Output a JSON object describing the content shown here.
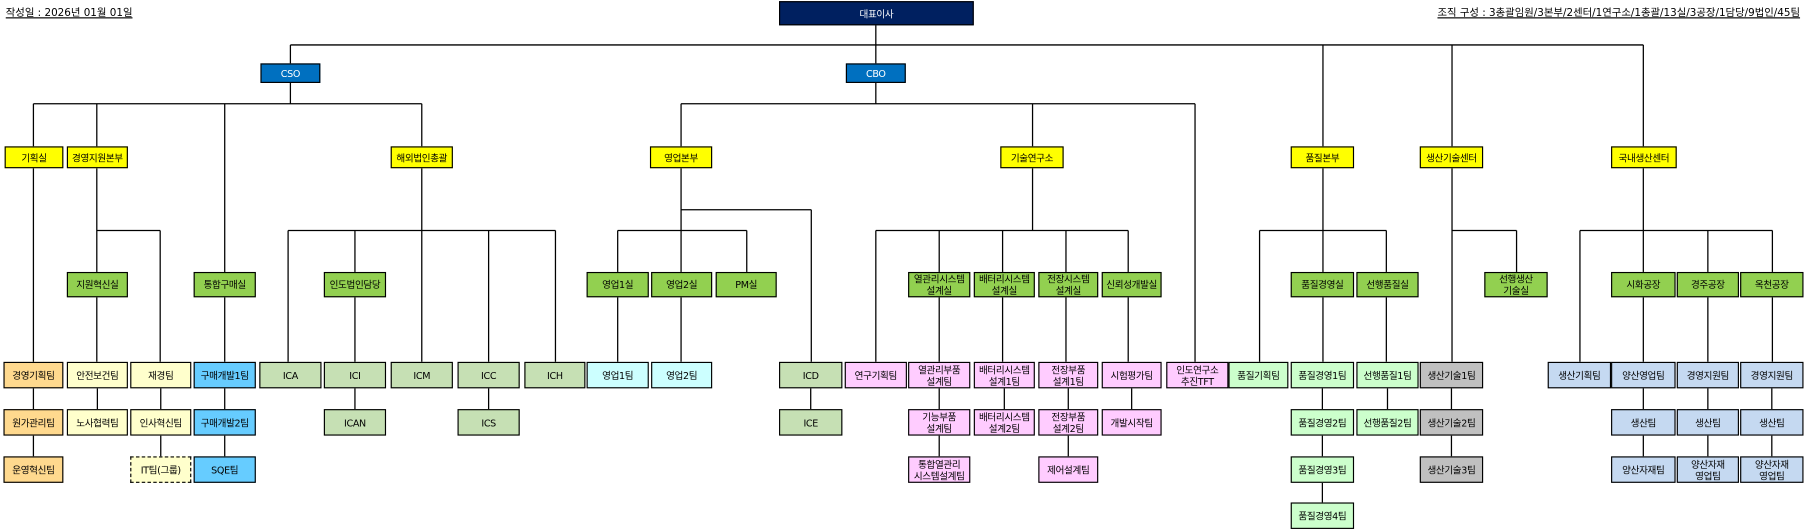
{
  "header": {
    "date_label": "작성일 : 2026년 01월 01일",
    "composition_label": "조직 구성 : 3총괄임원/3본부/2센터/1연구소/1총괄/13실/3공장/1담당/9법인/45팀"
  },
  "colors": {
    "navy": "#002060",
    "blue": "#0070c0",
    "yellow": "#ffff00",
    "green": "#92d050",
    "orange": "#ffd98e",
    "cream": "#ffffcc",
    "sky": "#66ccff",
    "olive": "#c6e0b4",
    "cyan": "#ccffff",
    "pink": "#ffccff",
    "mint": "#ccffcc",
    "gray": "#c0c0c0",
    "steel": "#c5d9f1"
  },
  "nodes": [
    {
      "label": "대표이사",
      "style": "navy"
    },
    {
      "label": "CSO",
      "style": "blue"
    },
    {
      "label": "CBO",
      "style": "blue"
    },
    {
      "label": "기획실",
      "style": "yellow"
    },
    {
      "label": "경영지원본부",
      "style": "yellow"
    },
    {
      "label": "해외법인총괄",
      "style": "yellow"
    },
    {
      "label": "영업본부",
      "style": "yellow"
    },
    {
      "label": "기술연구소",
      "style": "yellow"
    },
    {
      "label": "품질본부",
      "style": "yellow"
    },
    {
      "label": "생산기술센터",
      "style": "yellow"
    },
    {
      "label": "국내생산센터",
      "style": "yellow"
    },
    {
      "label": "지원혁신실",
      "style": "green"
    },
    {
      "label": "통합구매실",
      "style": "green"
    },
    {
      "label": "인도법인담당",
      "style": "green"
    },
    {
      "label": "영업1실",
      "style": "green"
    },
    {
      "label": "영업2실",
      "style": "green"
    },
    {
      "label": "PM실",
      "style": "green"
    },
    {
      "label": "열관리시스템\n설계실",
      "style": "green"
    },
    {
      "label": "배터리시스템\n설계실",
      "style": "green"
    },
    {
      "label": "전장시스템\n설계실",
      "style": "green"
    },
    {
      "label": "신뢰성개발실",
      "style": "green"
    },
    {
      "label": "품질경영실",
      "style": "green"
    },
    {
      "label": "선행품질실",
      "style": "green"
    },
    {
      "label": "선행생산\n기술실",
      "style": "green"
    },
    {
      "label": "시화공장",
      "style": "green"
    },
    {
      "label": "경주공장",
      "style": "green"
    },
    {
      "label": "옥천공장",
      "style": "green"
    },
    {
      "label": "경영기획팀",
      "style": "orange"
    },
    {
      "label": "원가관리팀",
      "style": "orange"
    },
    {
      "label": "운영혁신팀",
      "style": "orange"
    },
    {
      "label": "안전보건팀",
      "style": "cream"
    },
    {
      "label": "노사협력팀",
      "style": "cream"
    },
    {
      "label": "재경팀",
      "style": "cream"
    },
    {
      "label": "인사혁신팀",
      "style": "cream"
    },
    {
      "label": "IT팀(그룹)",
      "style": "cream",
      "dashed": true
    },
    {
      "label": "구매개발1팀",
      "style": "sky"
    },
    {
      "label": "구매개발2팀",
      "style": "sky"
    },
    {
      "label": "SQE팀",
      "style": "sky"
    },
    {
      "label": "ICA",
      "style": "olive"
    },
    {
      "label": "ICI",
      "style": "olive"
    },
    {
      "label": "ICAN",
      "style": "olive"
    },
    {
      "label": "ICM",
      "style": "olive"
    },
    {
      "label": "ICC",
      "style": "olive"
    },
    {
      "label": "ICS",
      "style": "olive"
    },
    {
      "label": "ICH",
      "style": "olive"
    },
    {
      "label": "영업1팀",
      "style": "cyan"
    },
    {
      "label": "영업2팀",
      "style": "cyan"
    },
    {
      "label": "ICD",
      "style": "olive"
    },
    {
      "label": "ICE",
      "style": "olive"
    },
    {
      "label": "연구기획팀",
      "style": "pink"
    },
    {
      "label": "열관리부품\n설계팀",
      "style": "pink"
    },
    {
      "label": "기능부품\n설계팀",
      "style": "pink"
    },
    {
      "label": "통합열관리\n시스템설계팀",
      "style": "pink"
    },
    {
      "label": "배터리시스템\n설계1팀",
      "style": "pink"
    },
    {
      "label": "배터리시스템\n설계2팀",
      "style": "pink"
    },
    {
      "label": "전장부품\n설계1팀",
      "style": "pink"
    },
    {
      "label": "전장부품\n설계2팀",
      "style": "pink"
    },
    {
      "label": "제어설계팀",
      "style": "pink"
    },
    {
      "label": "시험평가팀",
      "style": "pink"
    },
    {
      "label": "개발시작팀",
      "style": "pink"
    },
    {
      "label": "인도연구소\n추진TFT",
      "style": "pink"
    },
    {
      "label": "품질기획팀",
      "style": "mint"
    },
    {
      "label": "품질경영1팀",
      "style": "mint"
    },
    {
      "label": "품질경영2팀",
      "style": "mint"
    },
    {
      "label": "품질경영3팀",
      "style": "mint"
    },
    {
      "label": "품질경영4팀",
      "style": "mint"
    },
    {
      "label": "선행품질1팀",
      "style": "mint"
    },
    {
      "label": "선행품질2팀",
      "style": "mint"
    },
    {
      "label": "생산기술1팀",
      "style": "gray"
    },
    {
      "label": "생산기술2팀",
      "style": "gray"
    },
    {
      "label": "생산기술3팀",
      "style": "gray"
    },
    {
      "label": "생산기획팀",
      "style": "steel"
    },
    {
      "label": "양산영업팀",
      "style": "steel"
    },
    {
      "label": "생산팀",
      "style": "steel"
    },
    {
      "label": "양산자재팀",
      "style": "steel"
    },
    {
      "label": "경영지원팀",
      "style": "steel"
    },
    {
      "label": "생산팀",
      "style": "steel"
    },
    {
      "label": "양산자재\n영업팀",
      "style": "steel"
    },
    {
      "label": "경영지원팀",
      "style": "steel"
    },
    {
      "label": "생산팀",
      "style": "steel"
    },
    {
      "label": "양산자재\n영업팀",
      "style": "steel"
    }
  ]
}
